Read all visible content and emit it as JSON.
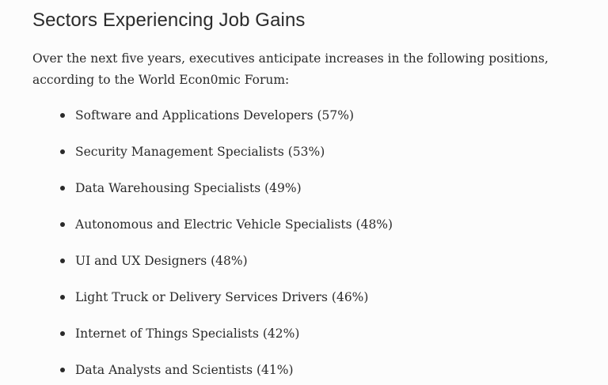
{
  "article": {
    "heading": "Sectors Experiencing Job Gains",
    "intro": "Over the next five years, executives anticipate increases in the following positions, according to the World Econ0mic Forum:",
    "items": [
      "Software and Applications Developers (57%)",
      "Security Management Specialists (53%)",
      "Data Warehousing Specialists (49%)",
      "Autonomous and Electric Vehicle Specialists (48%)",
      "UI and UX Designers (48%)",
      "Light Truck or Delivery Services Drivers (46%)",
      "Internet of Things Specialists (42%)",
      "Data Analysts and Scientists (41%)"
    ]
  }
}
